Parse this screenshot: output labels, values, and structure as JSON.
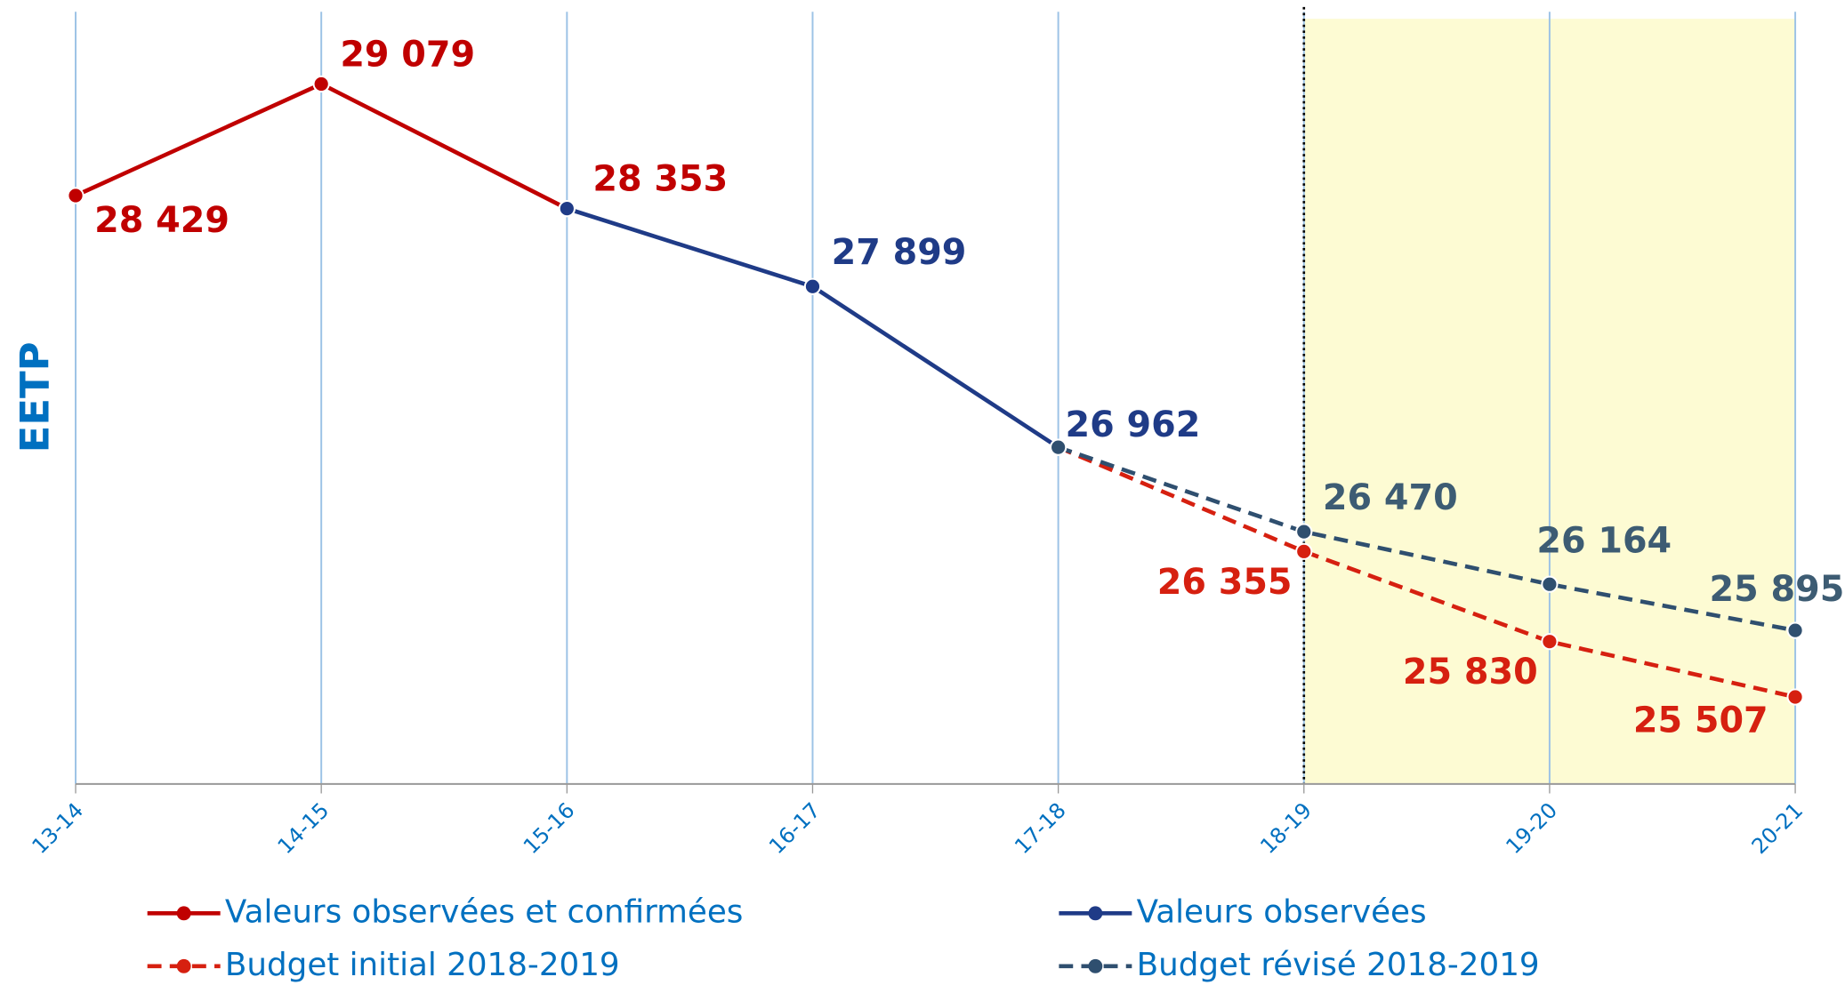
{
  "chart_data": {
    "type": "line",
    "y_label": "EETP",
    "categories": [
      "13-14",
      "14-15",
      "15-16",
      "16-17",
      "17-18",
      "18-19",
      "19-20",
      "20-21"
    ],
    "ylim": [
      25000,
      29500
    ],
    "grid": true,
    "highlight_categories": [
      "18-19",
      "20-21"
    ],
    "series": [
      {
        "name": "Valeurs observées et confirmées",
        "color": "#c00000",
        "dashed": false,
        "values": [
          28429,
          29079,
          28353,
          null,
          null,
          null,
          null,
          null
        ],
        "value_labels": [
          "28 429",
          "29 079",
          "28 353",
          null,
          null,
          null,
          null,
          null
        ]
      },
      {
        "name": "Valeurs observées",
        "color": "#1f3b87",
        "dashed": false,
        "values": [
          null,
          null,
          28353,
          27899,
          26962,
          null,
          null,
          null
        ],
        "value_labels": [
          null,
          null,
          null,
          "27 899",
          "26 962",
          null,
          null,
          null
        ]
      },
      {
        "name": "Budget initial 2018-2019",
        "color": "#d62010",
        "dashed": true,
        "values": [
          null,
          null,
          null,
          null,
          26962,
          26355,
          25830,
          25507
        ],
        "value_labels": [
          null,
          null,
          null,
          null,
          null,
          "26 355",
          "25 830",
          "25 507"
        ]
      },
      {
        "name": "Budget révisé 2018-2019",
        "color": "#2f4f6f",
        "label_color": "#3d5c73",
        "dashed": true,
        "values": [
          null,
          null,
          null,
          null,
          26962,
          26470,
          26164,
          25895
        ],
        "value_labels": [
          null,
          null,
          null,
          null,
          null,
          "26 470",
          "26 164",
          "25 895"
        ]
      }
    ]
  }
}
